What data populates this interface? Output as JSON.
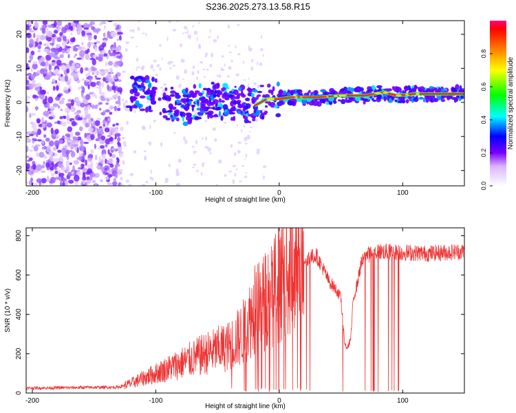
{
  "title": "S236.2025.273.13.58.R15",
  "colors": {
    "line": "#ee3333",
    "axis": "#000000",
    "background": "#ffffff"
  },
  "chart_data": [
    {
      "type": "heatmap",
      "xlabel": "Height of straight line (km)",
      "ylabel": "Frequency (Hz)",
      "xlim": [
        -205,
        150
      ],
      "ylim": [
        -24.5,
        24
      ],
      "xticks": [
        -200,
        -100,
        0,
        100
      ],
      "xtick_labels": [
        "-200",
        "-100",
        "0",
        "100"
      ],
      "yticks": [
        -20,
        -10,
        0,
        10,
        20
      ],
      "ytick_labels": [
        "-20",
        "-10",
        "0",
        "10",
        "20"
      ],
      "colorbar": {
        "label": "Normalized spectral amplitude",
        "range": [
          0,
          1
        ],
        "ticks": [
          0.0,
          0.2,
          0.4,
          0.6,
          0.8
        ],
        "tick_labels": [
          "0.0",
          "0.2",
          "0.4",
          "0.6",
          "0.8"
        ]
      },
      "ridge_frequency": {
        "x": [
          -120,
          -100,
          -80,
          -60,
          -40,
          -20,
          -10,
          0,
          10,
          30,
          50,
          70,
          85,
          95,
          110,
          150
        ],
        "y": [
          3,
          2,
          -2,
          1,
          0,
          -1,
          1,
          1,
          1.5,
          1.5,
          2,
          2,
          3,
          2,
          2.5,
          2.5
        ]
      }
    },
    {
      "type": "line",
      "xlabel": "Height of straight line (km)",
      "ylabel": "SNR (10 * v/v)",
      "xlim": [
        -205,
        150
      ],
      "ylim": [
        0,
        840
      ],
      "xticks": [
        -200,
        -100,
        0,
        100
      ],
      "xtick_labels": [
        "-200",
        "-100",
        "0",
        "100"
      ],
      "yticks": [
        0,
        200,
        400,
        600,
        800
      ],
      "ytick_labels": [
        "0",
        "200",
        "400",
        "600",
        "800"
      ],
      "envelope": {
        "x": [
          -205,
          -130,
          -120,
          -100,
          -80,
          -60,
          -40,
          -30,
          -20,
          -10,
          0,
          10,
          20,
          30,
          35,
          40,
          47,
          50,
          53,
          55,
          58,
          60,
          63,
          66,
          70,
          80,
          100,
          120,
          150
        ],
        "y": [
          25,
          30,
          50,
          100,
          150,
          200,
          240,
          300,
          420,
          480,
          560,
          630,
          680,
          700,
          640,
          570,
          520,
          480,
          260,
          220,
          280,
          480,
          550,
          650,
          700,
          720,
          715,
          710,
          720
        ]
      },
      "spike_max": 840
    }
  ]
}
